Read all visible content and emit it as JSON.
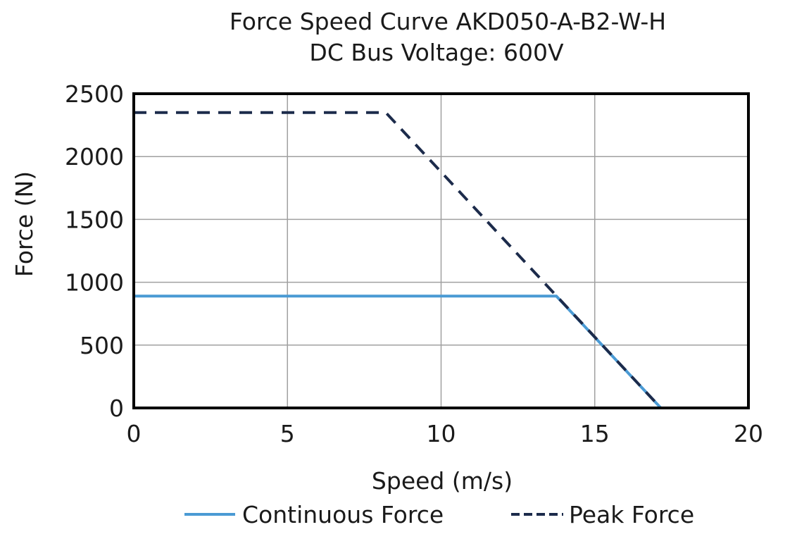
{
  "chart_data": {
    "type": "line",
    "title": "Force Speed Curve AKD050-A-B2-W-H",
    "subtitle": "DC Bus Voltage: 600V",
    "xlabel": "Speed (m/s)",
    "ylabel": "Force (N)",
    "xlim": [
      0,
      20
    ],
    "ylim": [
      0,
      2500
    ],
    "xticks": [
      0,
      5,
      10,
      15,
      20
    ],
    "yticks": [
      0,
      500,
      1000,
      1500,
      2000,
      2500
    ],
    "grid": true,
    "legend_position": "bottom",
    "series": [
      {
        "name": "Continuous Force",
        "style": "solid",
        "color": "#4a9ad4",
        "x": [
          0,
          13.75,
          17.15
        ],
        "y": [
          890,
          890,
          0
        ]
      },
      {
        "name": "Peak Force",
        "style": "dashed",
        "color": "#1c2b4b",
        "x": [
          0,
          8.2,
          17.15
        ],
        "y": [
          2350,
          2350,
          0
        ]
      }
    ]
  }
}
